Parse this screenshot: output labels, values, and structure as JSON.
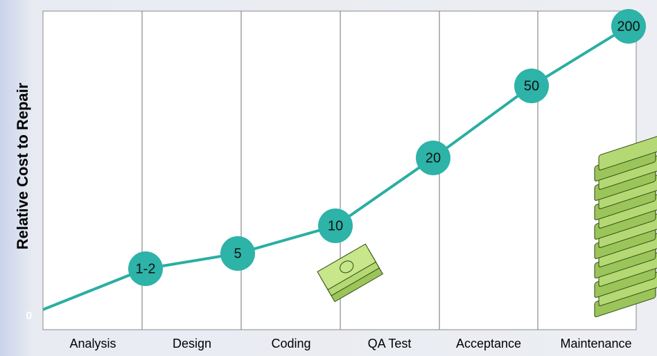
{
  "y_axis_label": "Relative Cost to Repair",
  "origin_label": "0",
  "stages": [
    "Analysis",
    "Design",
    "Coding",
    "QA Test",
    "Acceptance",
    "Maintenance"
  ],
  "points": [
    {
      "label": "1-2"
    },
    {
      "label": "5"
    },
    {
      "label": "10"
    },
    {
      "label": "20"
    },
    {
      "label": "50"
    },
    {
      "label": "200"
    }
  ]
}
